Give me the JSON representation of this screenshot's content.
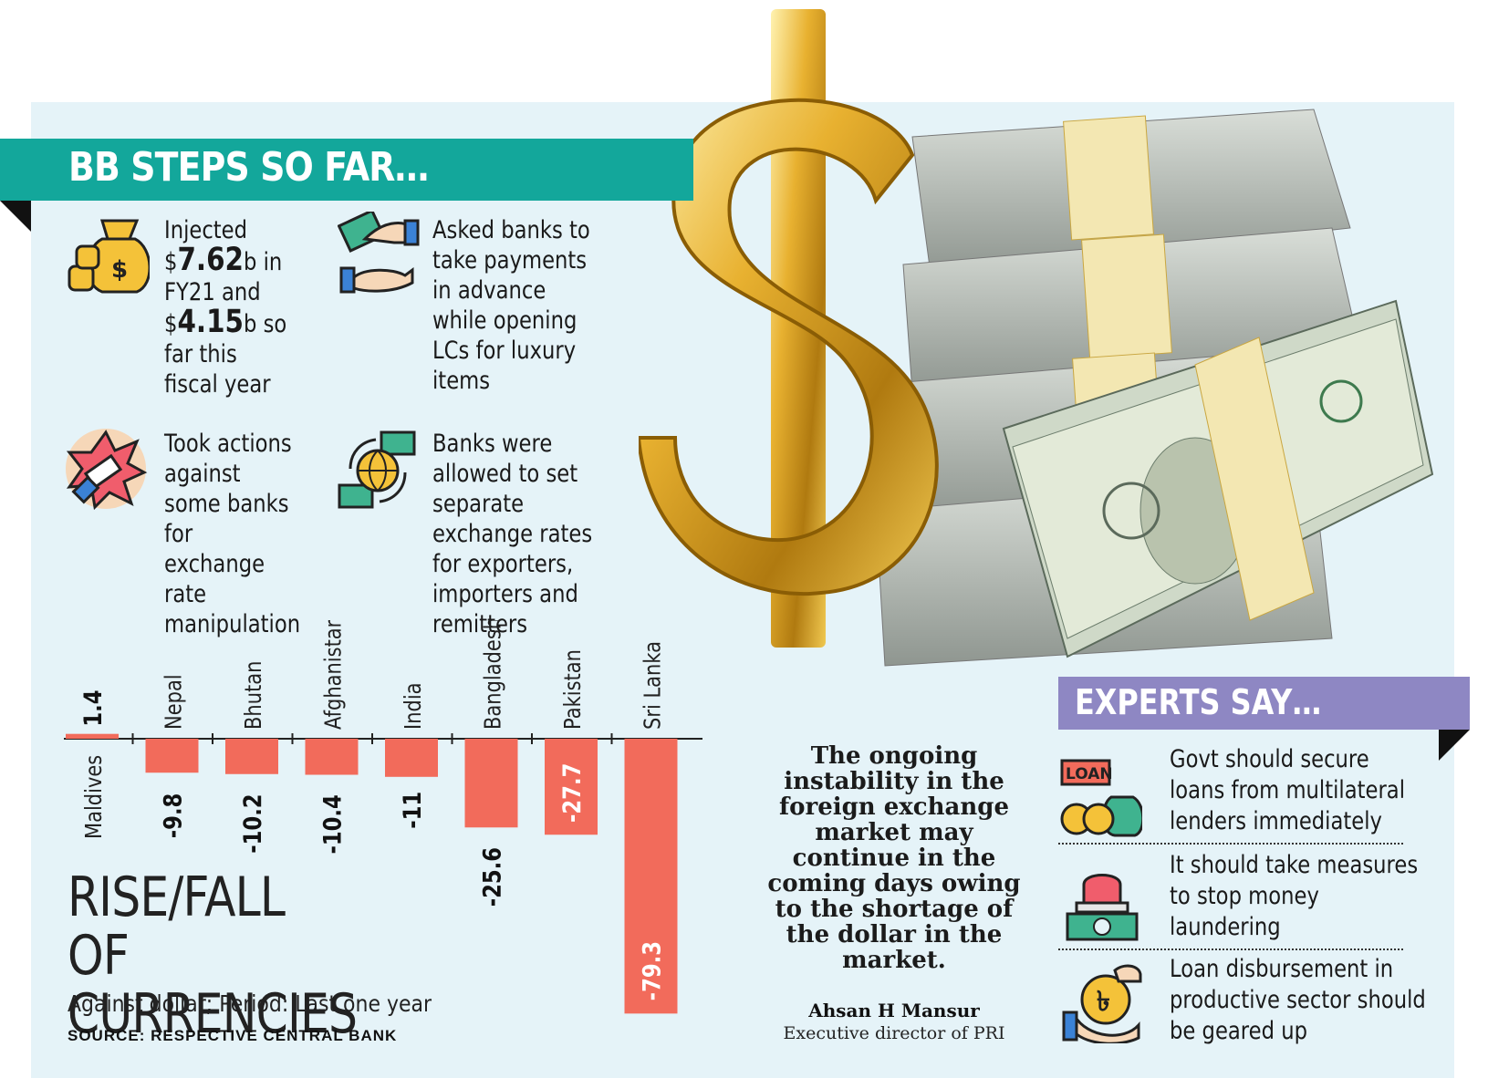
{
  "steps": {
    "title": "BB STEPS SO FAR…",
    "items": [
      {
        "icon": "money-bag-icon",
        "pre": "Injected $",
        "amount1": "7.62",
        "mid": "b in FY21 and $",
        "amount2": "4.15",
        "post": "b so far this fiscal year"
      },
      {
        "icon": "advance-payment-icon",
        "text": "Asked banks to take payments in advance while opening LCs for luxury items"
      },
      {
        "icon": "handshake-icon",
        "text": "Took actions against some banks for exchange rate manipulation"
      },
      {
        "icon": "globe-exchange-icon",
        "text": "Banks were allowed to set separate exchange rates for exporters, importers and remitters"
      }
    ]
  },
  "chart_data": {
    "type": "bar",
    "title": "RISE/FALL OF CURRENCIES",
    "subtitle": "Against dollar; Period: Last one year",
    "source": "SOURCE: RESPECTIVE CENTRAL BANK",
    "categories": [
      "Maldives",
      "Nepal",
      "Bhutan",
      "Afghanistan",
      "India",
      "Bangladesh",
      "Pakistan",
      "Sri Lanka"
    ],
    "values": [
      1.4,
      -9.8,
      -10.2,
      -10.4,
      -11,
      -25.6,
      -27.7,
      -79.3
    ],
    "value_labels": [
      "1.4",
      "-9.8",
      "-10.2",
      "-10.4",
      "-11",
      "-25.6",
      "-27.7",
      "-79.3"
    ],
    "bar_color": "#f26b5b"
  },
  "quote": {
    "text": "The ongoing instability in the foreign exchange market may continue in the coming days owing to the shortage of the dollar in the market.",
    "author": "Ahsan H Mansur",
    "role": "Executive director of PRI"
  },
  "experts": {
    "title": "EXPERTS SAY…",
    "items": [
      {
        "icon": "loan-icon",
        "text": "Govt should secure loans from multilateral lenders immediately"
      },
      {
        "icon": "alarm-money-icon",
        "text": "It should take measures to stop money laundering"
      },
      {
        "icon": "taka-coin-hand-icon",
        "text": "Loan disbursement in productive sector should be geared up"
      }
    ]
  },
  "colors": {
    "teal": "#13a79b",
    "panel": "#e5f3f8",
    "purple": "#8e87c3",
    "bar": "#f26b5b",
    "gold": "#e8b130"
  }
}
